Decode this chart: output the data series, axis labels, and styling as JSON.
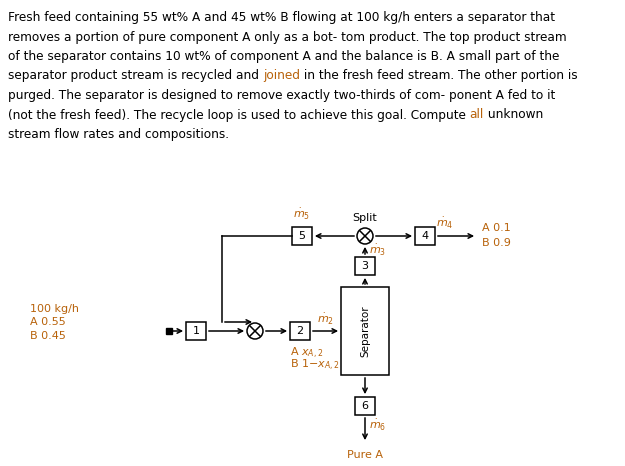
{
  "bg_color": "#ffffff",
  "text_color": "#000000",
  "orange_color": "#b8620a",
  "black": "#000000",
  "paragraph_lines": [
    "Fresh feed containing 55 wt% A and 45 wt% B flowing at 100 kg/h enters a separator that",
    "removes a portion of pure component A only as a bot- tom product. The top product stream",
    "of the separator contains 10 wt% of component A and the balance is B. A small part of the",
    "separator product stream is recycled and joined in the fresh feed stream. The other portion is",
    "purged. The separator is designed to remove exactly two-thirds of com- ponent A fed to it",
    "(not the fresh feed). The recycle loop is used to achieve this goal. Compute all unknown",
    "stream flow rates and compositions."
  ],
  "orange_words": [
    "joined",
    "all"
  ],
  "fig_width": 6.25,
  "fig_height": 4.66,
  "dpi": 100
}
